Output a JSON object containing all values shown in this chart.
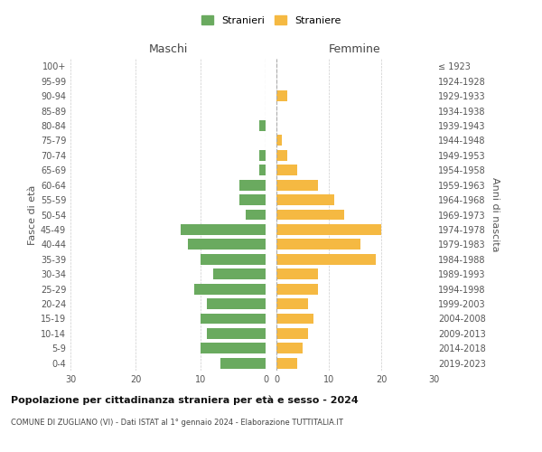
{
  "age_groups": [
    "0-4",
    "5-9",
    "10-14",
    "15-19",
    "20-24",
    "25-29",
    "30-34",
    "35-39",
    "40-44",
    "45-49",
    "50-54",
    "55-59",
    "60-64",
    "65-69",
    "70-74",
    "75-79",
    "80-84",
    "85-89",
    "90-94",
    "95-99",
    "100+"
  ],
  "birth_years": [
    "2019-2023",
    "2014-2018",
    "2009-2013",
    "2004-2008",
    "1999-2003",
    "1994-1998",
    "1989-1993",
    "1984-1988",
    "1979-1983",
    "1974-1978",
    "1969-1973",
    "1964-1968",
    "1959-1963",
    "1954-1958",
    "1949-1953",
    "1944-1948",
    "1939-1943",
    "1934-1938",
    "1929-1933",
    "1924-1928",
    "≤ 1923"
  ],
  "maschi": [
    7,
    10,
    9,
    10,
    9,
    11,
    8,
    10,
    12,
    13,
    3,
    4,
    4,
    1,
    1,
    0,
    1,
    0,
    0,
    0,
    0
  ],
  "femmine": [
    4,
    5,
    6,
    7,
    6,
    8,
    8,
    19,
    16,
    20,
    13,
    11,
    8,
    4,
    2,
    1,
    0,
    0,
    2,
    0,
    0
  ],
  "male_color": "#6aaa5f",
  "female_color": "#f5b942",
  "title_main": "Popolazione per cittadinanza straniera per età e sesso - 2024",
  "title_sub": "COMUNE DI ZUGLIANO (VI) - Dati ISTAT al 1° gennaio 2024 - Elaborazione TUTTITALIA.IT",
  "legend_male": "Stranieri",
  "legend_female": "Straniere",
  "header_left": "Maschi",
  "header_right": "Femmine",
  "ylabel_left": "Fasce di età",
  "ylabel_right": "Anni di nascita",
  "xlim": 30,
  "background_color": "#ffffff",
  "grid_color": "#cccccc"
}
